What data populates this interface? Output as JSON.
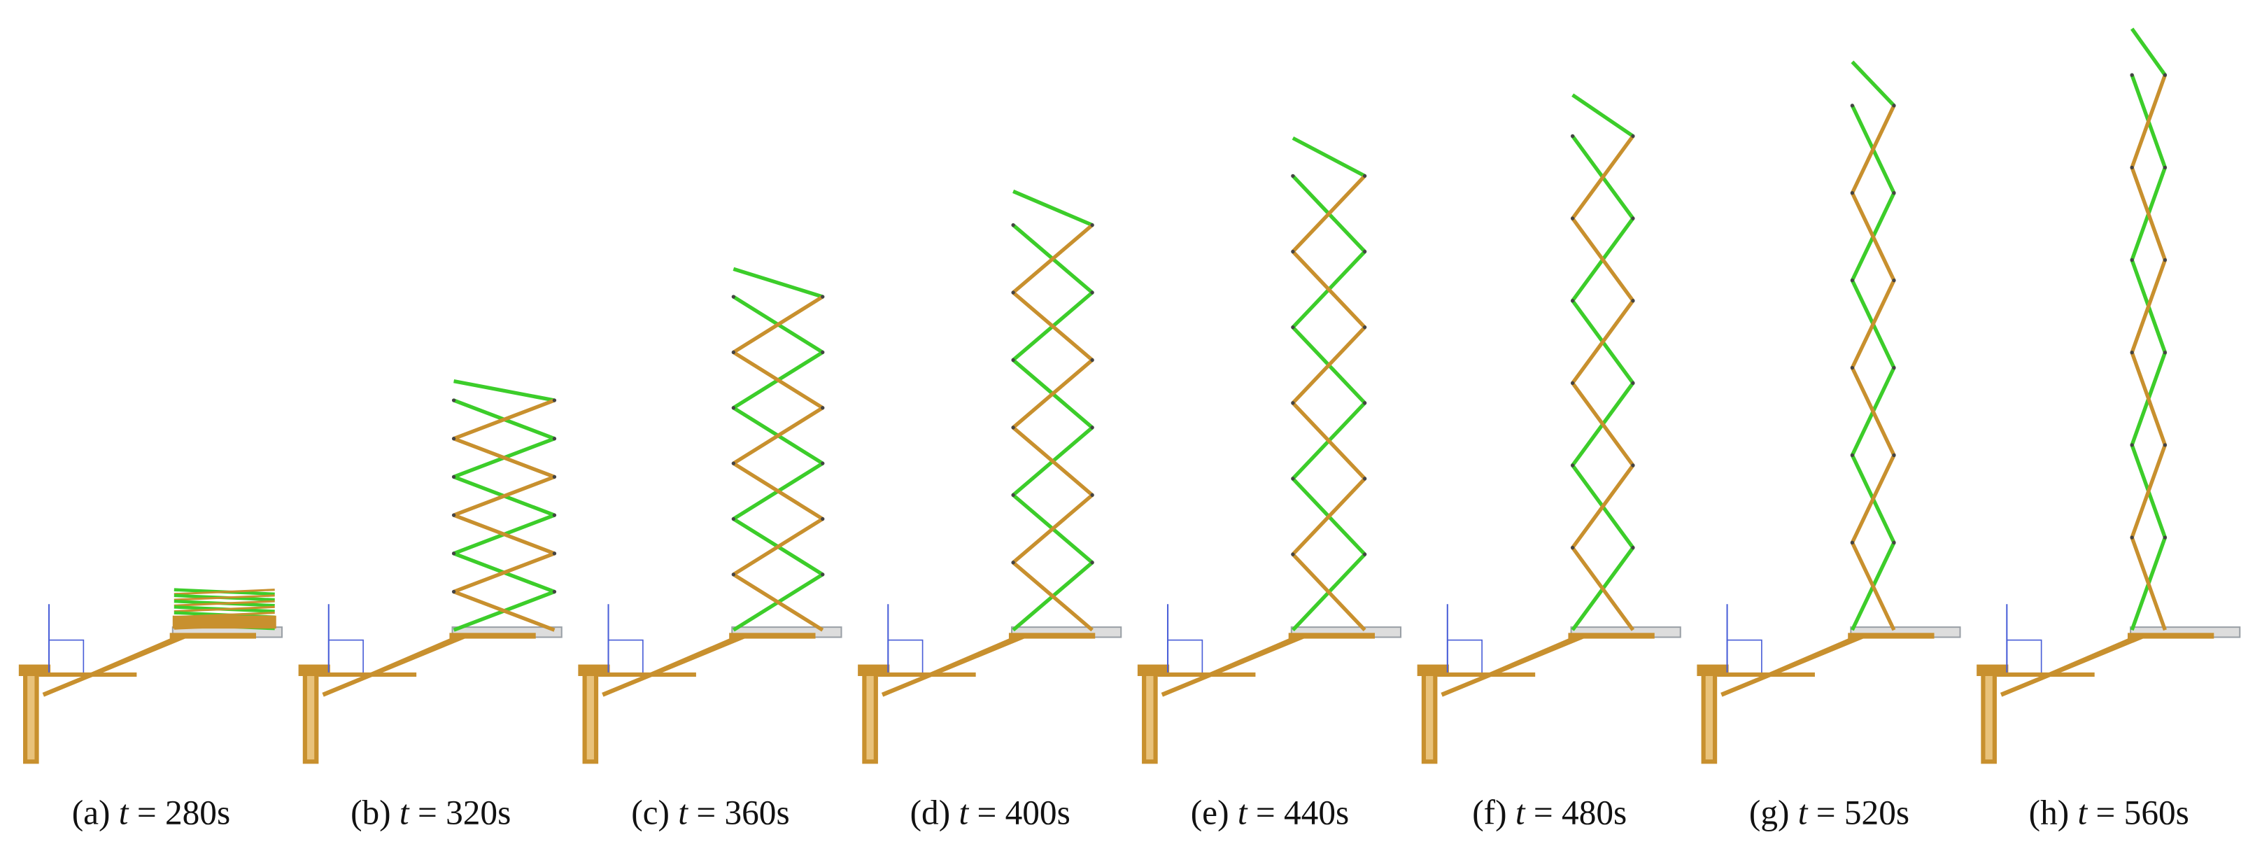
{
  "panels": [
    {
      "label": "(a)",
      "variable": "t",
      "time": "= 280s"
    },
    {
      "label": "(b)",
      "variable": "t",
      "time": "= 320s"
    },
    {
      "label": "(c)",
      "variable": "t",
      "time": "= 360s"
    },
    {
      "label": "(d)",
      "variable": "t",
      "time": "= 400s"
    },
    {
      "label": "(e)",
      "variable": "t",
      "time": "= 440s"
    },
    {
      "label": "(f)",
      "variable": "t",
      "time": "= 480s"
    },
    {
      "label": "(g)",
      "variable": "t",
      "time": "= 520s"
    },
    {
      "label": "(h)",
      "variable": "t",
      "time": "= 560s"
    }
  ]
}
